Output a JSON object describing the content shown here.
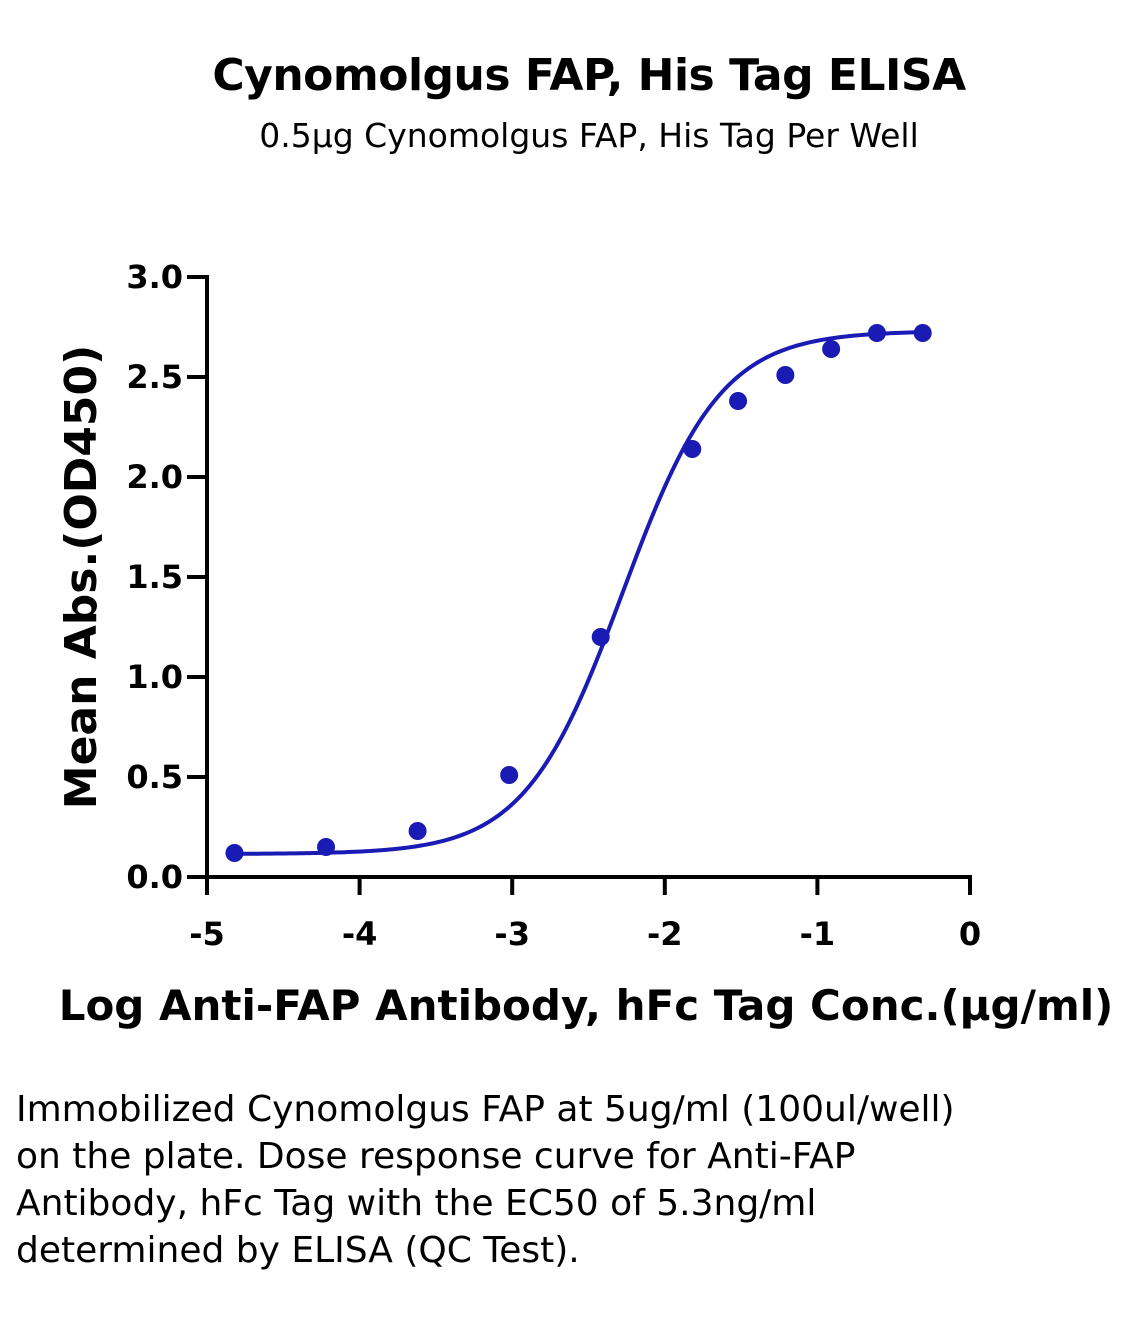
{
  "chart_data": {
    "type": "line",
    "title": "Cynomolgus FAP, His Tag ELISA",
    "subtitle": "0.5μg Cynomolgus FAP, His Tag Per Well",
    "xlabel": "Log Anti-FAP Antibody, hFc Tag Conc.(μg/ml)",
    "ylabel": "Mean Abs.(OD450)",
    "xlim": [
      -5,
      0
    ],
    "ylim": [
      0,
      3
    ],
    "xticks": [
      "-5",
      "-4",
      "-3",
      "-2",
      "-1",
      "0"
    ],
    "yticks": [
      "0.0",
      "0.5",
      "1.0",
      "1.5",
      "2.0",
      "2.5",
      "3.0"
    ],
    "grid": false,
    "color": "#1a1ab4",
    "series": [
      {
        "points": [
          {
            "x": -4.82,
            "y": 0.12
          },
          {
            "x": -4.22,
            "y": 0.15
          },
          {
            "x": -3.62,
            "y": 0.23
          },
          {
            "x": -3.02,
            "y": 0.51
          },
          {
            "x": -2.42,
            "y": 1.2
          },
          {
            "x": -1.82,
            "y": 2.14
          },
          {
            "x": -1.52,
            "y": 2.38
          },
          {
            "x": -1.21,
            "y": 2.51
          },
          {
            "x": -0.91,
            "y": 2.64
          },
          {
            "x": -0.61,
            "y": 2.72
          },
          {
            "x": -0.31,
            "y": 2.72
          }
        ]
      }
    ],
    "fit": {
      "model": "4PL",
      "bottom": 0.115,
      "top": 2.73,
      "log_ec50": -2.276,
      "hill": 1.35
    }
  },
  "caption": "Immobilized Cynomolgus FAP at 5ug/ml (100ul/well) on the plate. Dose response curve for Anti-FAP Antibody, hFc Tag with the EC50 of 5.3ng/ml determined by ELISA (QC Test)."
}
